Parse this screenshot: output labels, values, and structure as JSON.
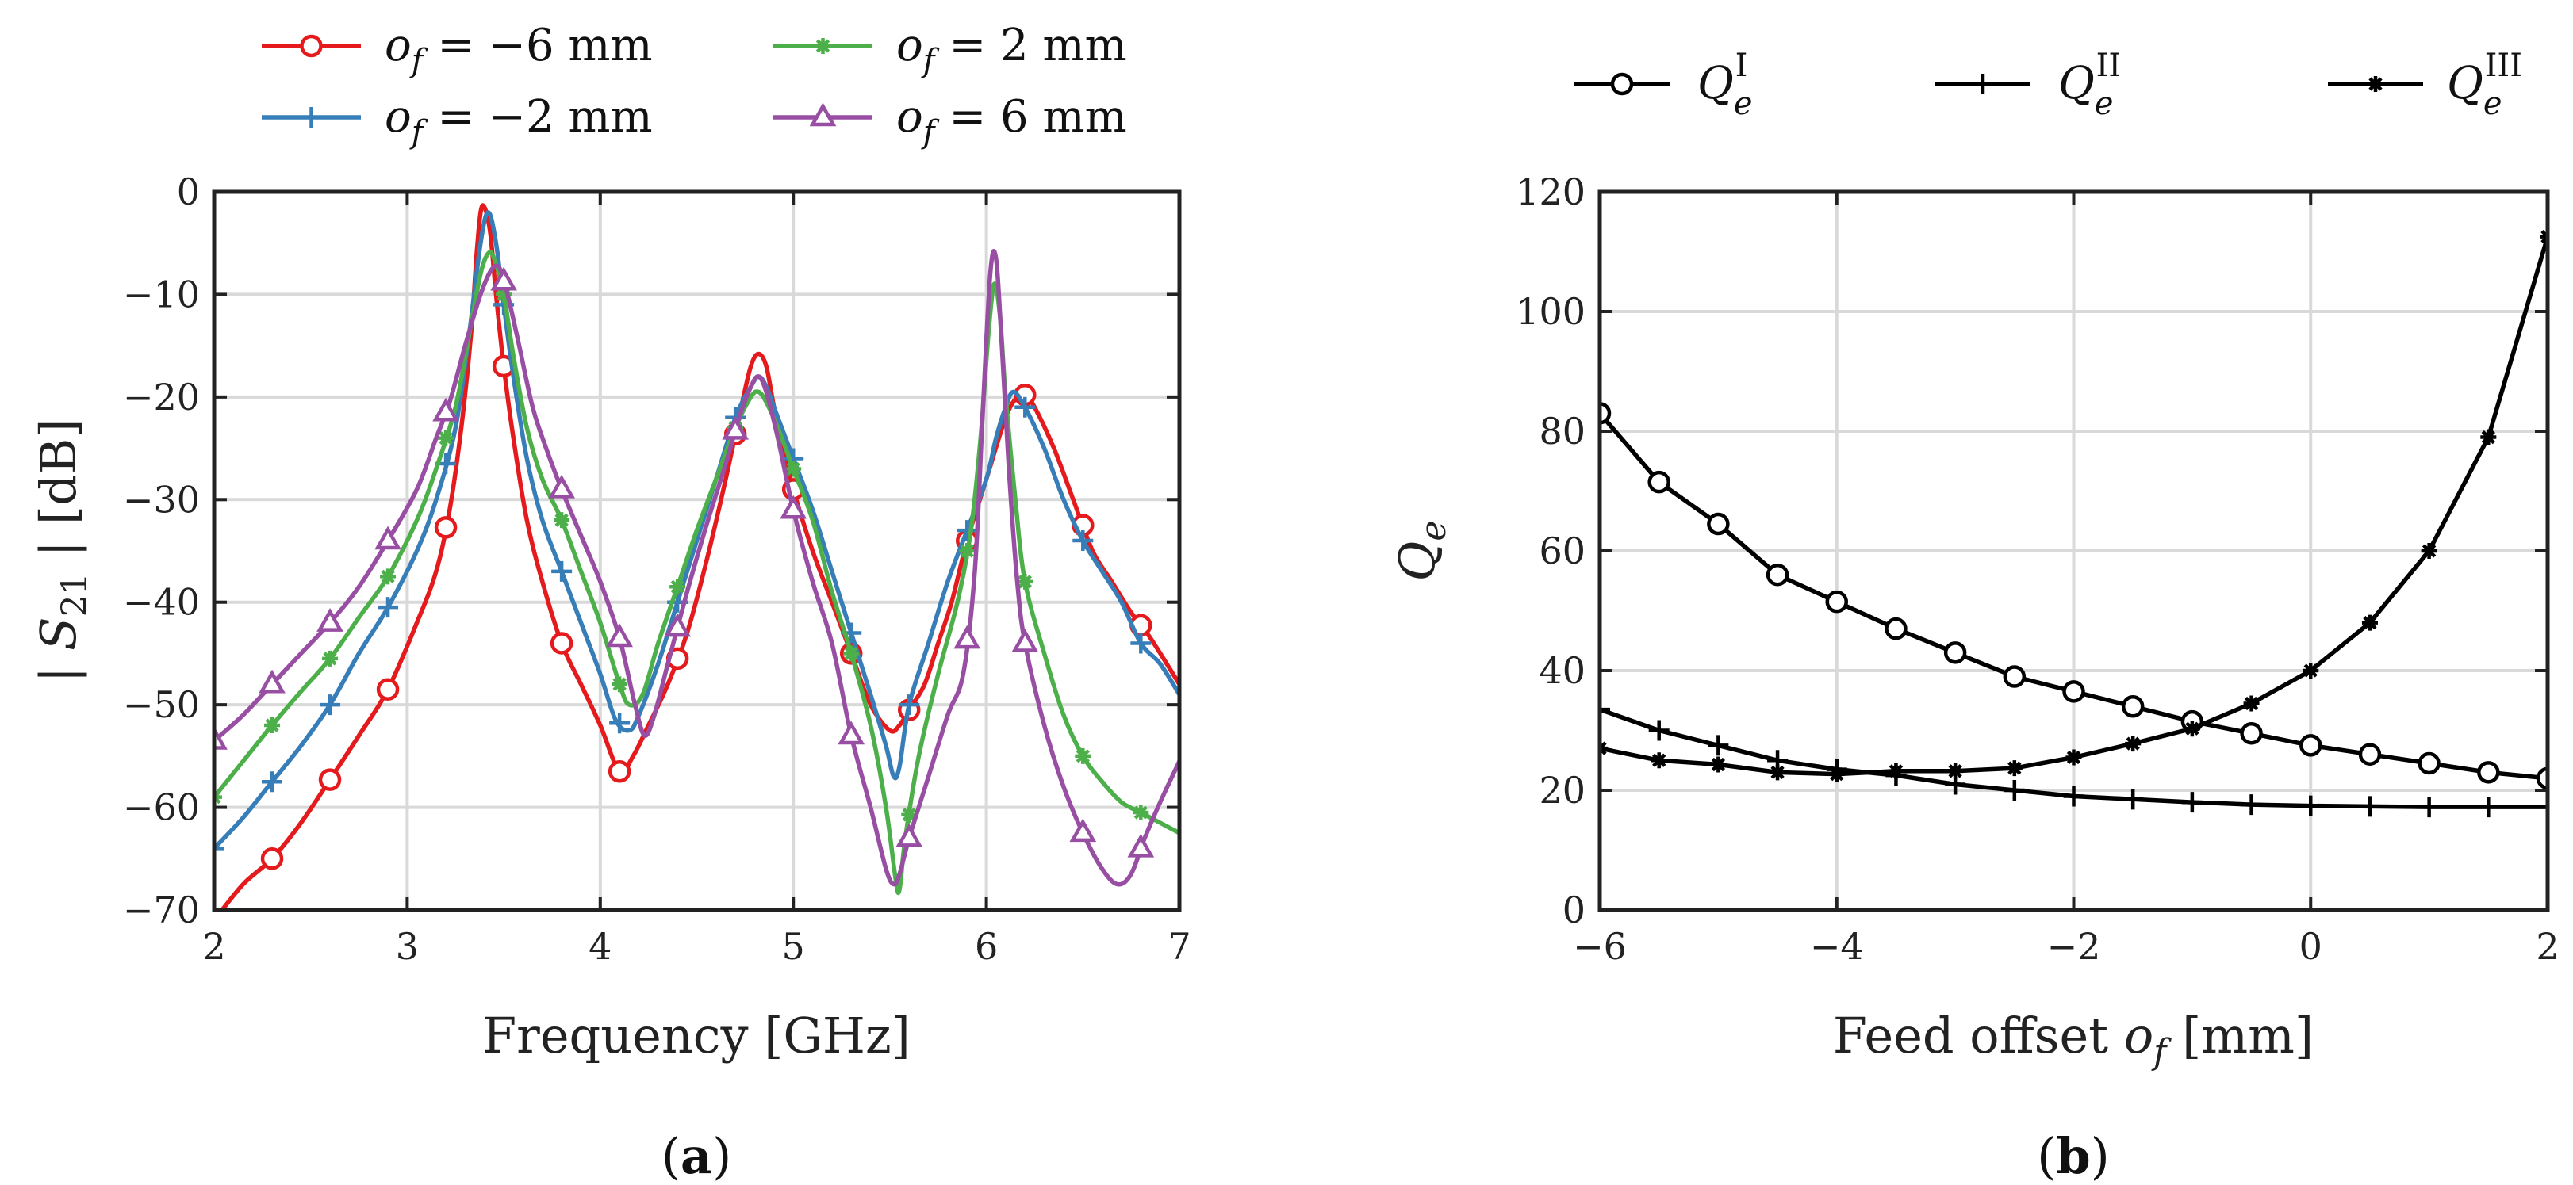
{
  "chart_data": [
    {
      "id": "a",
      "type": "line",
      "caption_prefix": "(",
      "caption_letter": "a",
      "caption_suffix": ")",
      "xlabel": "Frequency [GHz]",
      "ylabel": "| S21 | [dB]",
      "ylabel_main": "S",
      "ylabel_sub": "21",
      "ylabel_unit": " [dB]",
      "xlim": [
        2,
        7
      ],
      "ylim": [
        -70,
        0
      ],
      "xticks": [
        "2",
        "3",
        "4",
        "5",
        "6",
        "7"
      ],
      "yticks": [
        "0",
        "−10",
        "−20",
        "−30",
        "−40",
        "−50",
        "−60",
        "−70"
      ],
      "grid": true,
      "legend_position": "top",
      "series": [
        {
          "name": "o_f = −6 mm",
          "label_var": "o",
          "label_sub": "f",
          "label_val": " = −6 mm",
          "color": "#e41a1c",
          "marker": "circle",
          "x": [
            2.0,
            2.15,
            2.3,
            2.45,
            2.6,
            2.75,
            2.9,
            3.05,
            3.15,
            3.22,
            3.28,
            3.33,
            3.36,
            3.38,
            3.4,
            3.43,
            3.46,
            3.5,
            3.55,
            3.62,
            3.7,
            3.8,
            3.9,
            4.0,
            4.1,
            4.17,
            4.25,
            4.35,
            4.45,
            4.55,
            4.65,
            4.73,
            4.78,
            4.82,
            4.86,
            4.9,
            4.95,
            5.0,
            5.1,
            5.2,
            5.3,
            5.4,
            5.5,
            5.55,
            5.6,
            5.68,
            5.75,
            5.82,
            5.9,
            6.0,
            6.1,
            6.16,
            6.2,
            6.25,
            6.35,
            6.45,
            6.55,
            6.65,
            6.75,
            6.85,
            7.0
          ],
          "y": [
            -71,
            -67.5,
            -65,
            -61.5,
            -57.3,
            -53,
            -48.5,
            -42,
            -37,
            -31,
            -23,
            -14,
            -6,
            -2,
            -1.5,
            -4,
            -10,
            -17,
            -24,
            -32,
            -38,
            -44,
            -48,
            -52,
            -56.5,
            -55,
            -52,
            -48,
            -43,
            -36,
            -28,
            -21,
            -17,
            -15.8,
            -17,
            -21,
            -25,
            -29,
            -35,
            -40,
            -45,
            -50,
            -52.5,
            -52,
            -50.5,
            -48,
            -44,
            -40,
            -34,
            -28,
            -22,
            -20,
            -19.8,
            -21,
            -25,
            -30,
            -35,
            -38,
            -41,
            -43.5,
            -48
          ]
        },
        {
          "name": "o_f = −2 mm",
          "label_var": "o",
          "label_sub": "f",
          "label_val": " = −2 mm",
          "color": "#377eb8",
          "marker": "plus",
          "x": [
            2.0,
            2.15,
            2.3,
            2.45,
            2.6,
            2.75,
            2.9,
            3.05,
            3.15,
            3.25,
            3.32,
            3.38,
            3.42,
            3.46,
            3.5,
            3.55,
            3.62,
            3.7,
            3.8,
            3.9,
            4.0,
            4.08,
            4.15,
            4.2,
            4.3,
            4.4,
            4.5,
            4.6,
            4.7,
            4.78,
            4.82,
            4.86,
            4.92,
            5.0,
            5.1,
            5.2,
            5.3,
            5.4,
            5.48,
            5.52,
            5.55,
            5.6,
            5.7,
            5.8,
            5.9,
            6.0,
            6.05,
            6.1,
            6.14,
            6.2,
            6.3,
            6.4,
            6.5,
            6.6,
            6.7,
            6.8,
            6.9,
            7.0
          ],
          "y": [
            -64,
            -61,
            -57.5,
            -54,
            -50,
            -45,
            -40.5,
            -35,
            -30,
            -23,
            -14,
            -5,
            -2,
            -5,
            -11,
            -18,
            -26,
            -32,
            -37,
            -42,
            -47,
            -51.5,
            -52.5,
            -51,
            -46,
            -40,
            -34,
            -28,
            -22,
            -19,
            -18,
            -19,
            -22,
            -26,
            -31,
            -37,
            -43,
            -49,
            -54,
            -57,
            -56,
            -50,
            -44,
            -38,
            -33,
            -28,
            -24,
            -21,
            -19.5,
            -21,
            -25,
            -30,
            -34,
            -37,
            -40,
            -44,
            -46,
            -49
          ]
        },
        {
          "name": "o_f = 2 mm",
          "label_var": "o",
          "label_sub": "f",
          "label_val": " = 2 mm",
          "color": "#4daf4a",
          "marker": "asterisk",
          "x": [
            2.0,
            2.15,
            2.3,
            2.45,
            2.6,
            2.75,
            2.9,
            3.05,
            3.15,
            3.25,
            3.32,
            3.38,
            3.42,
            3.45,
            3.5,
            3.55,
            3.62,
            3.7,
            3.8,
            3.9,
            4.0,
            4.1,
            4.15,
            4.22,
            4.3,
            4.4,
            4.5,
            4.6,
            4.7,
            4.78,
            4.82,
            4.86,
            4.92,
            5.0,
            5.1,
            5.2,
            5.3,
            5.4,
            5.48,
            5.53,
            5.55,
            5.58,
            5.65,
            5.75,
            5.85,
            5.92,
            5.97,
            6.01,
            6.04,
            6.07,
            6.1,
            6.15,
            6.2,
            6.3,
            6.4,
            6.5,
            6.6,
            6.7,
            6.8,
            6.9,
            7.0
          ],
          "y": [
            -59,
            -55.5,
            -52,
            -48.7,
            -45.5,
            -41.5,
            -37.5,
            -32,
            -27,
            -21,
            -14,
            -8,
            -6,
            -6.5,
            -10,
            -16,
            -23,
            -28,
            -32,
            -37,
            -42,
            -48,
            -50,
            -49,
            -44,
            -38.5,
            -33,
            -28,
            -23,
            -20,
            -19.5,
            -20.5,
            -23,
            -27,
            -32,
            -39,
            -45,
            -52,
            -60,
            -67,
            -68,
            -63,
            -55,
            -47,
            -40,
            -33,
            -24,
            -14,
            -9,
            -12,
            -20,
            -30,
            -38,
            -45,
            -51,
            -55,
            -57.5,
            -59.5,
            -60.5,
            -61.5,
            -62.5
          ]
        },
        {
          "name": "o_f = 6 mm",
          "label_var": "o",
          "label_sub": "f",
          "label_val": " = 6 mm",
          "color": "#984ea3",
          "marker": "triangle",
          "x": [
            2.0,
            2.15,
            2.3,
            2.45,
            2.6,
            2.75,
            2.9,
            3.05,
            3.15,
            3.22,
            3.3,
            3.38,
            3.44,
            3.48,
            3.52,
            3.58,
            3.65,
            3.72,
            3.8,
            3.9,
            4.0,
            4.1,
            4.18,
            4.23,
            4.28,
            4.35,
            4.45,
            4.55,
            4.65,
            4.72,
            4.78,
            4.82,
            4.86,
            4.92,
            5.0,
            5.1,
            5.2,
            5.3,
            5.4,
            5.48,
            5.52,
            5.55,
            5.6,
            5.7,
            5.8,
            5.88,
            5.94,
            5.98,
            6.02,
            6.05,
            6.08,
            6.12,
            6.16,
            6.2,
            6.3,
            6.4,
            6.5,
            6.6,
            6.68,
            6.75,
            6.82,
            6.9,
            7.0
          ],
          "y": [
            -53.5,
            -51,
            -48,
            -45,
            -42,
            -38.5,
            -34,
            -29,
            -24,
            -20.5,
            -15,
            -10,
            -7.5,
            -7.5,
            -10,
            -15,
            -21,
            -25,
            -29,
            -33.5,
            -38,
            -43.5,
            -50,
            -53,
            -51,
            -46,
            -39,
            -32.5,
            -26.5,
            -22,
            -19,
            -18,
            -19.5,
            -24,
            -31,
            -38,
            -44,
            -53,
            -60,
            -66,
            -67.5,
            -66.5,
            -63,
            -57,
            -51,
            -47,
            -37,
            -22,
            -8,
            -6.5,
            -15,
            -28,
            -38,
            -44,
            -52,
            -58,
            -62.5,
            -66,
            -67.5,
            -66.5,
            -63,
            -59.5,
            -55.5
          ]
        }
      ]
    },
    {
      "id": "b",
      "type": "line",
      "caption_prefix": "(",
      "caption_letter": "b",
      "caption_suffix": ")",
      "xlabel": "Feed offset o_f [mm]",
      "xlabel_text": "Feed offset ",
      "xlabel_var": "o",
      "xlabel_sub": "f",
      "xlabel_unit": " [mm]",
      "ylabel": "Q_e",
      "ylabel_var": "Q",
      "ylabel_sub": "e",
      "xlim": [
        -6,
        2
      ],
      "ylim": [
        0,
        120
      ],
      "xticks": [
        "−6",
        "−4",
        "−2",
        "0",
        "2"
      ],
      "yticks": [
        "0",
        "20",
        "40",
        "60",
        "80",
        "100",
        "120"
      ],
      "grid": true,
      "legend_position": "top",
      "series": [
        {
          "name": "Q_e^I",
          "label_var": "Q",
          "label_sub": "e",
          "label_sup": "I",
          "color": "#000000",
          "marker": "circle",
          "x": [
            -6,
            -5.5,
            -5,
            -4.5,
            -4,
            -3.5,
            -3,
            -2.5,
            -2,
            -1.5,
            -1,
            -0.5,
            0,
            0.5,
            1,
            1.5,
            2
          ],
          "y": [
            83,
            71.5,
            64.5,
            56,
            51.5,
            47,
            43,
            39,
            36.5,
            34,
            31.5,
            29.5,
            27.5,
            26,
            24.5,
            23,
            22
          ]
        },
        {
          "name": "Q_e^II",
          "label_var": "Q",
          "label_sub": "e",
          "label_sup": "II",
          "color": "#000000",
          "marker": "plus",
          "x": [
            -6,
            -5.5,
            -5,
            -4.5,
            -4,
            -3.5,
            -3,
            -2.5,
            -2,
            -1.5,
            -1,
            -0.5,
            0,
            0.5,
            1,
            1.5,
            2
          ],
          "y": [
            33.5,
            30,
            27.5,
            25,
            23.5,
            22.5,
            21,
            20,
            19,
            18.5,
            18,
            17.6,
            17.4,
            17.3,
            17.2,
            17.2,
            17.2
          ]
        },
        {
          "name": "Q_e^III",
          "label_var": "Q",
          "label_sub": "e",
          "label_sup": "III",
          "color": "#000000",
          "marker": "asterisk",
          "x": [
            -6,
            -5.5,
            -5,
            -4.5,
            -4,
            -3.5,
            -3,
            -2.5,
            -2,
            -1.5,
            -1,
            -0.5,
            0,
            0.5,
            1,
            1.5,
            2
          ],
          "y": [
            27,
            25,
            24.3,
            23,
            22.7,
            23.2,
            23.2,
            23.7,
            25.5,
            27.8,
            30.3,
            34.5,
            40,
            48,
            60,
            79,
            112.5
          ]
        }
      ]
    }
  ]
}
